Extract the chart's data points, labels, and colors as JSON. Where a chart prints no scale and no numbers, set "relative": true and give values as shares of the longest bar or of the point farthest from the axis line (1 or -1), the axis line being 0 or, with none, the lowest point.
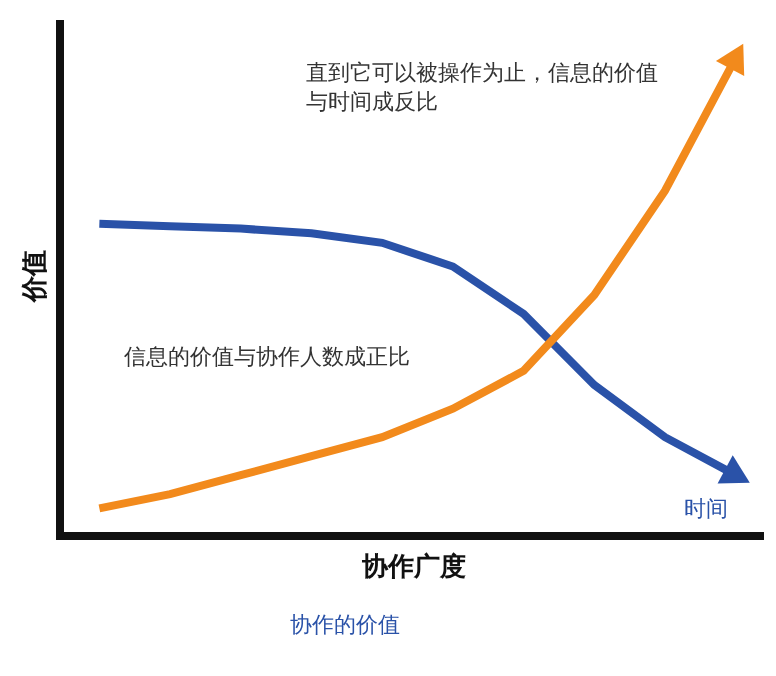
{
  "chart_data": {
    "type": "line",
    "relative": true,
    "xlabel": "协作广度",
    "ylabel": "价值",
    "categories": [
      null,
      null,
      null,
      null,
      null,
      null,
      null,
      null,
      null,
      null
    ],
    "series": [
      {
        "name": "时间",
        "color": "#2a52a8",
        "values": [
          0.65,
          0.645,
          0.64,
          0.63,
          0.61,
          0.56,
          0.46,
          0.31,
          0.2,
          0.12
        ]
      },
      {
        "color": "#f28a1c",
        "values": [
          0.05,
          0.08,
          0.12,
          0.16,
          0.2,
          0.26,
          0.34,
          0.5,
          0.72,
          1.0
        ]
      }
    ],
    "annotations": [
      "直到它可以被操作为止，信息的价值与时间成反比",
      "信息的价值与协作人数成正比",
      "协作的价值"
    ],
    "grid": false,
    "marker": "none",
    "line_style": "solid"
  }
}
